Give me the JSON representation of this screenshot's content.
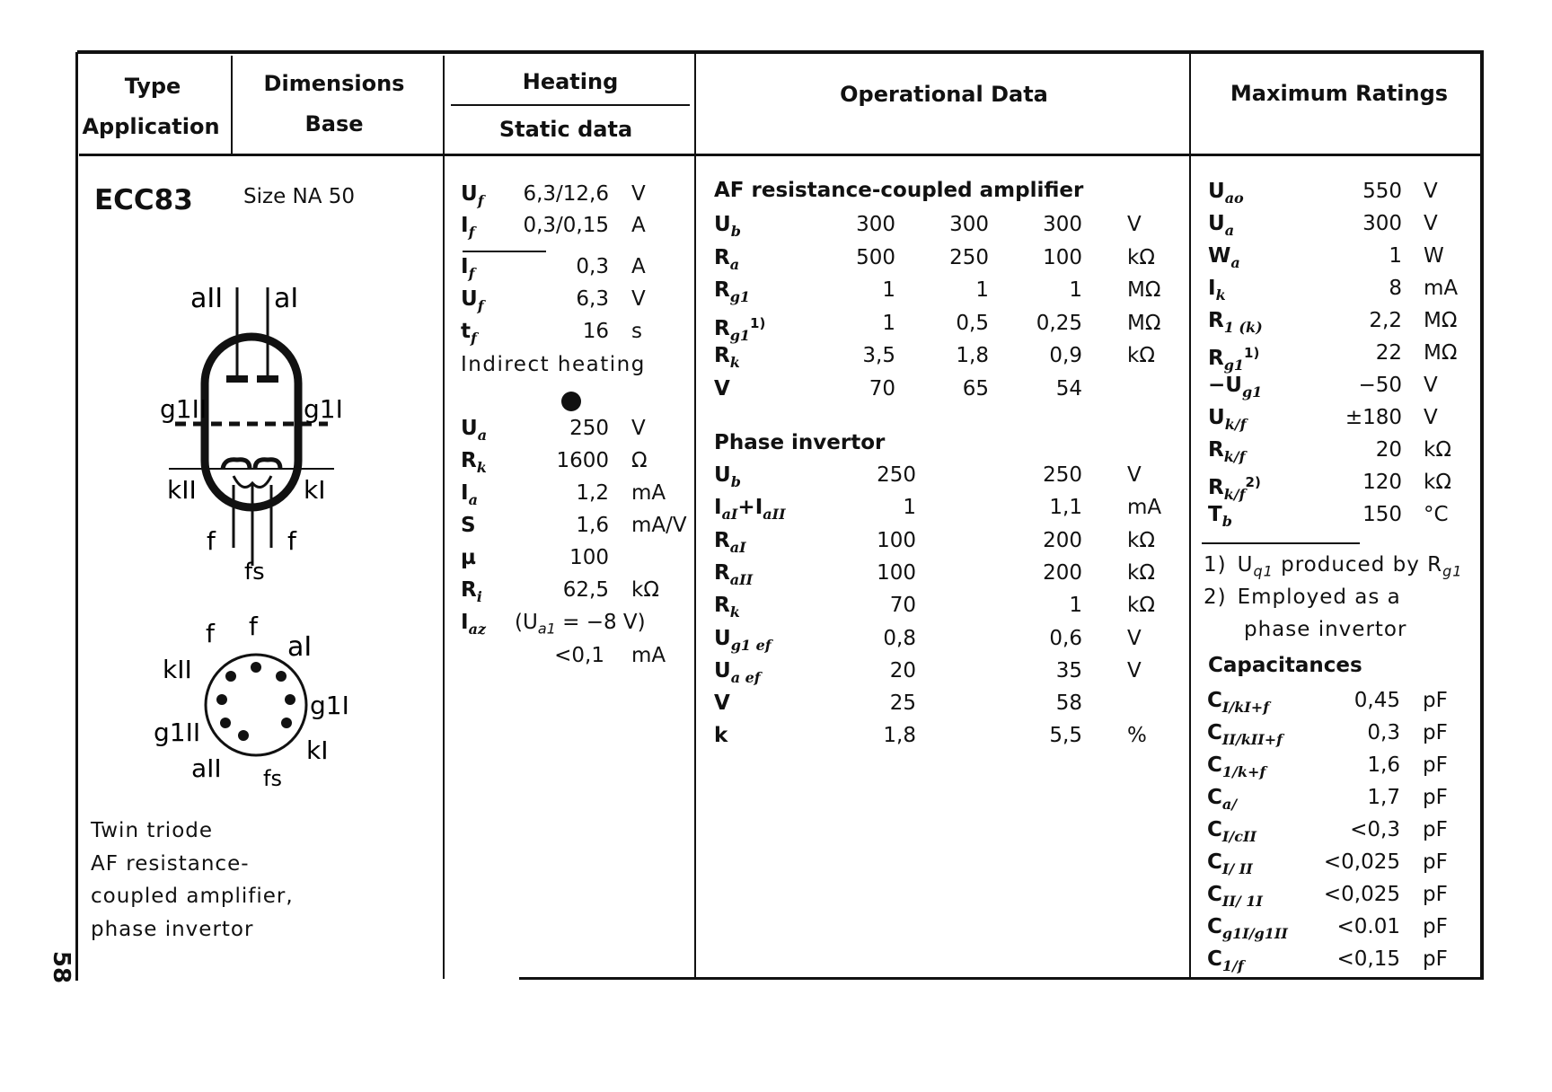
{
  "header": {
    "type": "Type",
    "application": "Application",
    "dimensions": "Dimensions",
    "base": "Base",
    "heating": "Heating",
    "static_data": "Static data",
    "operational_data": "Operational Data",
    "maximum_ratings": "Maximum Ratings"
  },
  "tube": {
    "name": "ECC83",
    "size": "Size  NA 50",
    "page_number": "58",
    "description": [
      "Twin triode",
      "AF resistance-",
      "coupled amplifier,",
      "phase invertor"
    ],
    "symbol_labels": {
      "a2": "aII",
      "a1": "aI",
      "g2": "g1II",
      "g1": "g1I",
      "k2": "kII",
      "k1": "kI",
      "f_left": "f",
      "f_right": "f",
      "fs": "fs"
    },
    "base_labels": {
      "f1": "f",
      "f2": "f",
      "a1": "aI",
      "k2": "kII",
      "g1": "g1I",
      "g2": "g1II",
      "k1": "kI",
      "a2": "aII",
      "fs": "fs"
    }
  },
  "static": {
    "rows": [
      {
        "label": "U",
        "sub": "f",
        "value": "6,3/12,6",
        "unit": "V"
      },
      {
        "label": "I",
        "sub": "f",
        "value": "0,3/0,15",
        "unit": "A"
      },
      {
        "label": "I",
        "sub": "f",
        "value": "0,3",
        "unit": "A"
      },
      {
        "label": "U",
        "sub": "f",
        "value": "6,3",
        "unit": "V"
      },
      {
        "label": "t",
        "sub": "f",
        "value": "16",
        "unit": "s"
      }
    ],
    "heating_note": "Indirect heating",
    "rows2": [
      {
        "label": "U",
        "sub": "a",
        "value": "250",
        "unit": "V"
      },
      {
        "label": "R",
        "sub": "k",
        "value": "1600",
        "unit": "Ω"
      },
      {
        "label": "I",
        "sub": "a",
        "value": "1,2",
        "unit": "mA"
      },
      {
        "label": "S",
        "sub": "",
        "value": "1,6",
        "unit": "mA/V"
      },
      {
        "label": "µ",
        "sub": "",
        "value": "100",
        "unit": ""
      },
      {
        "label": "R",
        "sub": "i",
        "value": "62,5",
        "unit": "kΩ"
      }
    ],
    "iaz": {
      "label": "I",
      "sub": "az",
      "condition": "(U",
      "condition_sub": "a1",
      "condition_rest": " = −8 V)",
      "value": "<0,1",
      "unit": "mA"
    }
  },
  "operational": {
    "af_title": "AF  resistance-coupled  amplifier",
    "af_rows": [
      {
        "label": "U",
        "sub": "b",
        "sup": "",
        "values": [
          "300",
          "300",
          "300"
        ],
        "unit": "V"
      },
      {
        "label": "R",
        "sub": "a",
        "sup": "",
        "values": [
          "500",
          "250",
          "100"
        ],
        "unit": "kΩ"
      },
      {
        "label": "R",
        "sub": "g1",
        "sup": "",
        "values": [
          "1",
          "1",
          "1"
        ],
        "unit": "MΩ"
      },
      {
        "label": "R",
        "sub": "g1",
        "sup": "1)",
        "values": [
          "1",
          "0,5",
          "0,25"
        ],
        "unit": "MΩ"
      },
      {
        "label": "R",
        "sub": "k",
        "sup": "",
        "values": [
          "3,5",
          "1,8",
          "0,9"
        ],
        "unit": "kΩ"
      },
      {
        "label": "V",
        "sub": "",
        "sup": "",
        "values": [
          "70",
          "65",
          "54"
        ],
        "unit": ""
      }
    ],
    "phase_title": "Phase invertor",
    "phase_rows": [
      {
        "label": "U",
        "sub": "b",
        "sup": "",
        "values": [
          "250",
          "250"
        ],
        "unit": "V"
      },
      {
        "label": "I",
        "sub": "aI",
        "sup": "",
        "label2": "+I",
        "sub2": "aII",
        "values": [
          "1",
          "1,1"
        ],
        "unit": "mA"
      },
      {
        "label": "R",
        "sub": "aI",
        "sup": "",
        "values": [
          "100",
          "200"
        ],
        "unit": "kΩ"
      },
      {
        "label": "R",
        "sub": "aII",
        "sup": "",
        "values": [
          "100",
          "200"
        ],
        "unit": "kΩ"
      },
      {
        "label": "R",
        "sub": "k",
        "sup": "",
        "values": [
          "70",
          "1"
        ],
        "unit": "kΩ"
      },
      {
        "label": "U",
        "sub": "g1 ef",
        "sup": "",
        "values": [
          "0,8",
          "0,6"
        ],
        "unit": "V"
      },
      {
        "label": "U",
        "sub": "a ef",
        "sup": "",
        "values": [
          "20",
          "35"
        ],
        "unit": "V"
      },
      {
        "label": "V",
        "sub": "",
        "sup": "",
        "values": [
          "25",
          "58"
        ],
        "unit": ""
      },
      {
        "label": "k",
        "sub": "",
        "sup": "",
        "values": [
          "1,8",
          "5,5"
        ],
        "unit": "%"
      }
    ]
  },
  "ratings": {
    "rows": [
      {
        "label": "U",
        "sub": "ao",
        "sup": "",
        "value": "550",
        "unit": "V"
      },
      {
        "label": "U",
        "sub": "a",
        "sup": "",
        "value": "300",
        "unit": "V"
      },
      {
        "label": "W",
        "sub": "a",
        "sup": "",
        "value": "1",
        "unit": "W"
      },
      {
        "label": "I",
        "sub": "k",
        "sup": "",
        "value": "8",
        "unit": "mA"
      },
      {
        "label": "R",
        "sub": "1 (k)",
        "sup": "",
        "value": "2,2",
        "unit": "MΩ"
      },
      {
        "label": "R",
        "sub": "g1",
        "sup": "1)",
        "value": "22",
        "unit": "MΩ"
      },
      {
        "label": "−U",
        "sub": "g1",
        "sup": "",
        "value": "−50",
        "unit": "V"
      },
      {
        "label": "U",
        "sub": "k/f",
        "sup": "",
        "value": "±180",
        "unit": "V"
      },
      {
        "label": "R",
        "sub": "k/f",
        "sup": "",
        "value": "20",
        "unit": "kΩ"
      },
      {
        "label": "R",
        "sub": "k/f",
        "sup": "2)",
        "value": "120",
        "unit": "kΩ"
      },
      {
        "label": "T",
        "sub": "b",
        "sup": "",
        "value": "150",
        "unit": "°C"
      }
    ],
    "notes": [
      {
        "mark": "1)",
        "text": "U",
        "sub": "q1",
        "rest": " produced by R",
        "sub2": "g1"
      },
      {
        "mark": "2)",
        "text": "Employed  as  a",
        "sub": "",
        "rest": "",
        "sub2": ""
      },
      {
        "mark": "",
        "text": "phase  invertor",
        "sub": "",
        "rest": "",
        "sub2": ""
      }
    ],
    "capacitances_title": "Capacitances",
    "capacitances": [
      {
        "label": "C",
        "sub": "I/kI+f",
        "value": "0,45",
        "unit": "pF"
      },
      {
        "label": "C",
        "sub": "II/kII+f",
        "value": "0,3",
        "unit": "pF"
      },
      {
        "label": "C",
        "sub": "1/k+f",
        "value": "1,6",
        "unit": "pF"
      },
      {
        "label": "C",
        "sub": "a/",
        "value": "1,7",
        "unit": "pF"
      },
      {
        "label": "C",
        "sub": "I/cII",
        "value": "<0,3",
        "unit": "pF"
      },
      {
        "label": "C",
        "sub": "I/ II",
        "value": "<0,025",
        "unit": "pF"
      },
      {
        "label": "C",
        "sub": "II/ 1I",
        "value": "<0,025",
        "unit": "pF"
      },
      {
        "label": "C",
        "sub": "g1I/g1II",
        "value": "<0.01",
        "unit": "pF"
      },
      {
        "label": "C",
        "sub": "1/f",
        "value": "<0,15",
        "unit": "pF"
      }
    ]
  }
}
